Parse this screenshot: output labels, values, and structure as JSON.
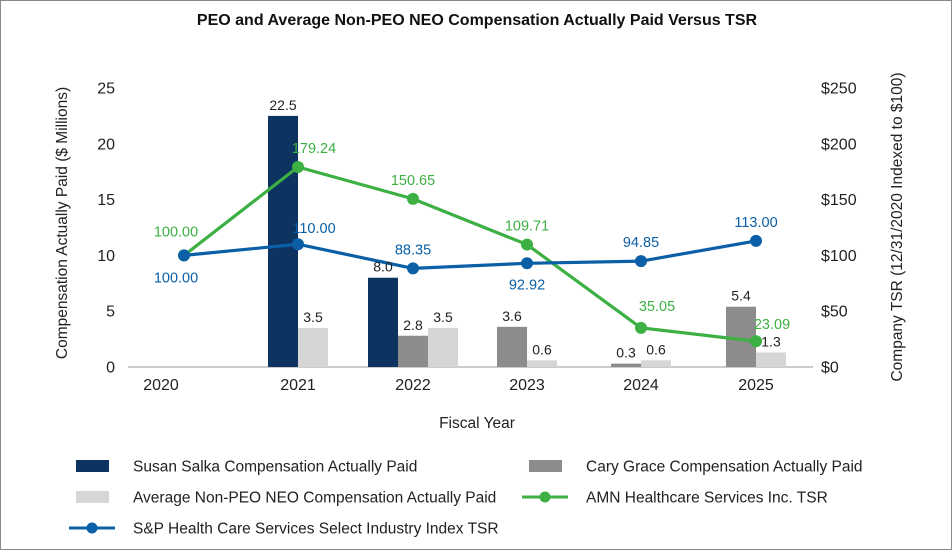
{
  "chart_data": {
    "type": "bar+line",
    "title": "PEO and Average Non-PEO NEO Compensation Actually Paid Versus TSR",
    "xlabel": "Fiscal Year",
    "ylabel": "Compensation Actually Paid ($ Millions)",
    "y2label": "Company TSR (12/31/2020 Indexed to $100)",
    "categories": [
      "2020",
      "2021",
      "2022",
      "2023",
      "2024",
      "2025"
    ],
    "ylim": [
      0,
      25
    ],
    "y_ticks": [
      "0",
      "5",
      "10",
      "15",
      "20",
      "25"
    ],
    "y2lim": [
      0,
      250
    ],
    "y2_ticks": [
      "$0",
      "$50",
      "$100",
      "$150",
      "$200",
      "$250"
    ],
    "bar_series": [
      {
        "name": "Susan Salka Compensation Actually Paid",
        "color": "#0d3360",
        "values": [
          null,
          22.5,
          8.0,
          null,
          null,
          null
        ],
        "labels": [
          null,
          "22.5",
          "8.0",
          null,
          null,
          null
        ]
      },
      {
        "name": "Cary Grace Compensation Actually Paid",
        "color": "#8c8c8c",
        "values": [
          null,
          null,
          2.8,
          3.6,
          0.3,
          5.4
        ],
        "labels": [
          null,
          null,
          "2.8",
          "3.6",
          "0.3",
          "5.4"
        ]
      },
      {
        "name": "Average Non-PEO NEO Compensation Actually Paid",
        "color": "#d6d6d6",
        "values": [
          null,
          3.5,
          3.5,
          0.6,
          0.6,
          1.3
        ],
        "labels": [
          null,
          "3.5",
          "3.5",
          "0.6",
          "0.6",
          "1.3"
        ]
      }
    ],
    "line_series": [
      {
        "name": "AMN Healthcare Services Inc. TSR",
        "color": "#3cb043",
        "values": [
          100.0,
          179.24,
          150.65,
          109.71,
          35.05,
          23.09
        ],
        "labels": [
          "100.00",
          "179.24",
          "150.65",
          "109.71",
          "35.05",
          "23.09"
        ]
      },
      {
        "name": "S&P Health Care Services Select Industry Index TSR",
        "color": "#0a5fa6",
        "values": [
          100.0,
          110.0,
          88.35,
          92.92,
          94.85,
          113.0
        ],
        "labels": [
          "100.00",
          "110.00",
          "88.35",
          "92.92",
          "94.85",
          "113.00"
        ]
      }
    ],
    "legend": [
      {
        "name": "Susan Salka Compensation Actually Paid",
        "kind": "bar",
        "color": "#0d3360"
      },
      {
        "name": "Cary Grace Compensation Actually Paid",
        "kind": "bar",
        "color": "#8c8c8c"
      },
      {
        "name": "Average Non-PEO NEO Compensation Actually Paid",
        "kind": "bar",
        "color": "#d6d6d6"
      },
      {
        "name": "AMN Healthcare Services Inc. TSR",
        "kind": "line",
        "color": "#3cb043"
      },
      {
        "name": "S&P Health Care Services Select Industry Index TSR",
        "kind": "line",
        "color": "#0a5fa6"
      }
    ],
    "legend_placement": "bottom"
  }
}
